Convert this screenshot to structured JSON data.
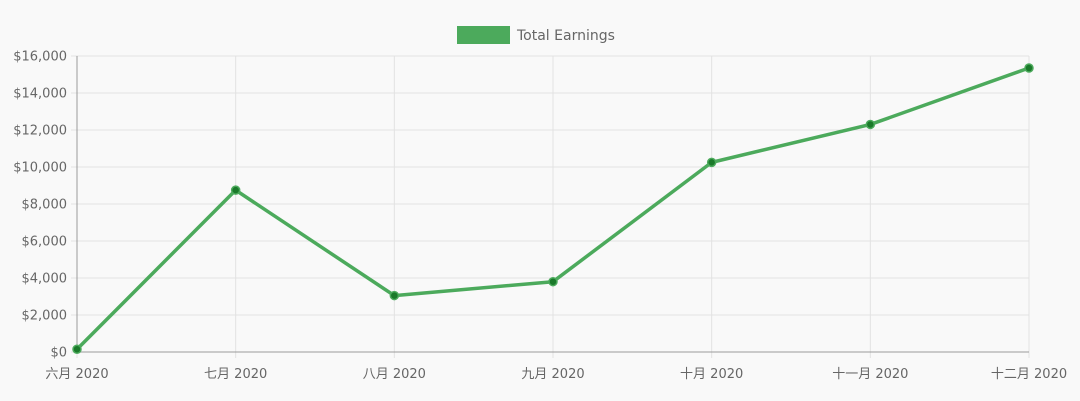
{
  "chart_data": {
    "type": "line",
    "categories": [
      "六月 2020",
      "七月 2020",
      "八月 2020",
      "九月 2020",
      "十月 2020",
      "十一月 2020",
      "十二月 2020"
    ],
    "series": [
      {
        "name": "Total Earnings",
        "values": [
          150,
          8750,
          3050,
          3800,
          10250,
          12300,
          15350
        ],
        "color": "#4caa5c",
        "point_color": "#1a7a2a"
      }
    ],
    "ylim": [
      0,
      16000
    ],
    "yticks": [
      0,
      2000,
      4000,
      6000,
      8000,
      10000,
      12000,
      14000,
      16000
    ],
    "ytick_labels": [
      "$0",
      "$2,000",
      "$4,000",
      "$6,000",
      "$8,000",
      "$10,000",
      "$12,000",
      "$14,000",
      "$16,000"
    ],
    "grid": true,
    "legend_position": "top-center",
    "title": "",
    "xlabel": "",
    "ylabel": ""
  }
}
